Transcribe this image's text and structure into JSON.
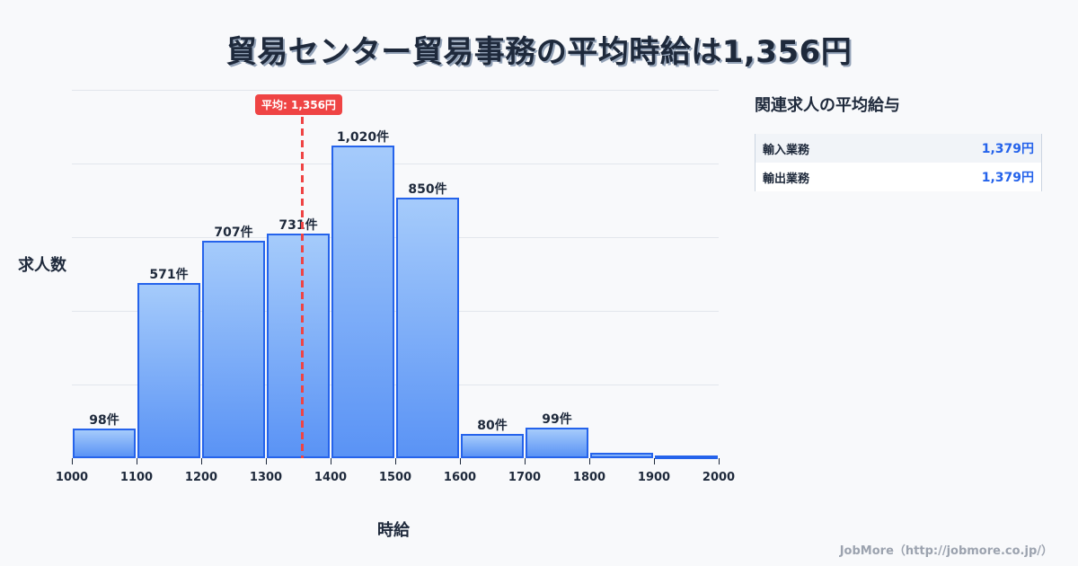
{
  "title": "貿易センター貿易事務の平均時給は1,356円",
  "chart_data": {
    "type": "bar",
    "title": "貿易センター貿易事務の平均時給は1,356円",
    "xlabel": "時給",
    "ylabel": "求人数",
    "categories": [
      "1000-1100",
      "1100-1200",
      "1200-1300",
      "1300-1400",
      "1400-1500",
      "1500-1600",
      "1600-1700",
      "1700-1800",
      "1800-1900",
      "1900-2000"
    ],
    "x_ticks": [
      "1000",
      "1100",
      "1200",
      "1300",
      "1400",
      "1500",
      "1600",
      "1700",
      "1800",
      "1900",
      "2000"
    ],
    "values": [
      98,
      571,
      707,
      731,
      1020,
      850,
      80,
      99,
      17,
      5
    ],
    "labels": [
      "98件",
      "571件",
      "707件",
      "731件",
      "1,020件",
      "850件",
      "80件",
      "99件",
      "",
      ""
    ],
    "ylim": [
      0,
      1200
    ],
    "grid": true,
    "mean": {
      "value": 1356,
      "label": "平均: 1,356円"
    }
  },
  "sidebar": {
    "title": "関連求人の平均給与",
    "items": [
      {
        "name": "輸入業務",
        "value": "1,379円"
      },
      {
        "name": "輸出業務",
        "value": "1,379円"
      }
    ]
  },
  "footer": "JobMore（http://jobmore.co.jp/）",
  "colors": {
    "bar": "#5a93f5",
    "bar_border": "#2563eb",
    "mean": "#ef4444",
    "accent": "#2563eb"
  }
}
